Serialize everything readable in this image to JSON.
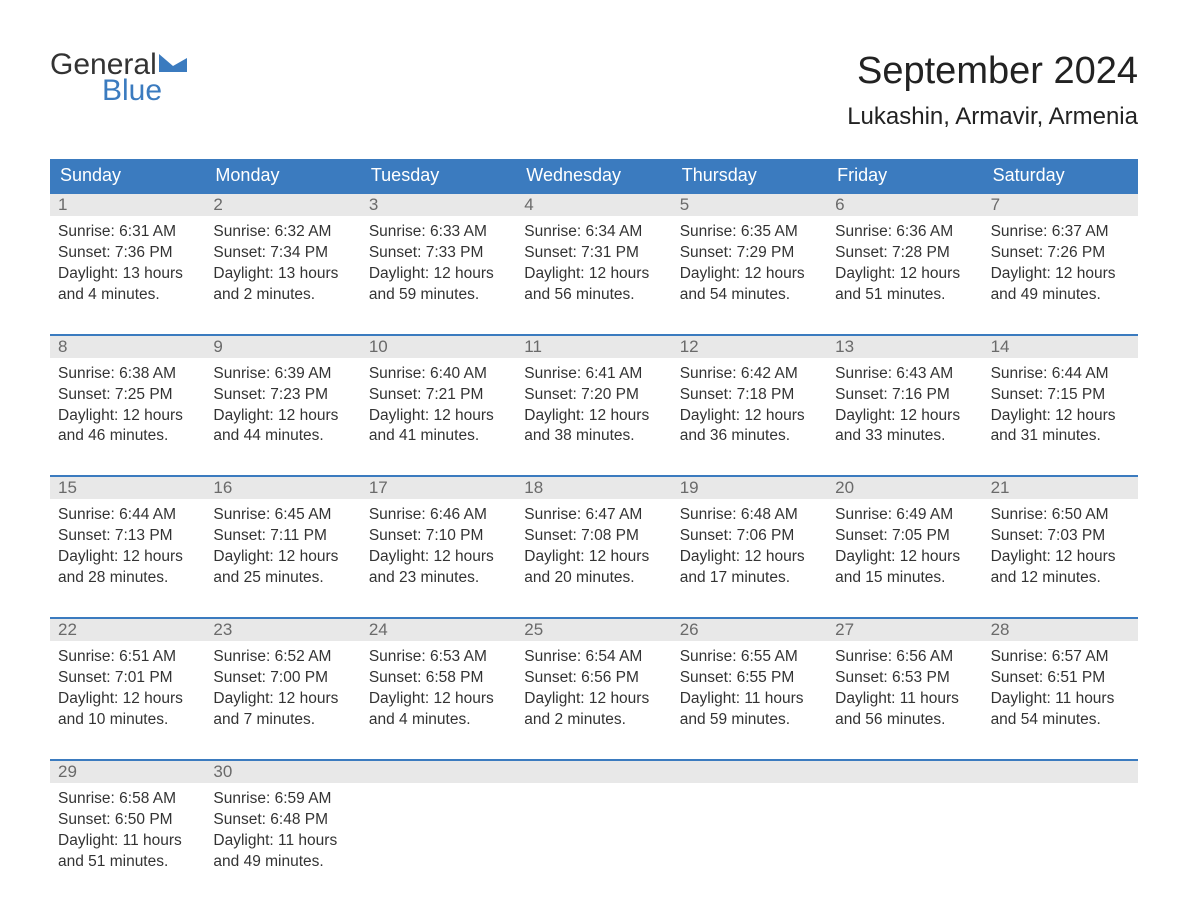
{
  "logo": {
    "top": "General",
    "bottom": "Blue",
    "flag_color": "#3b7bbf"
  },
  "title": "September 2024",
  "location": "Lukashin, Armavir, Armenia",
  "colors": {
    "header_bg": "#3b7bbf",
    "header_text": "#ffffff",
    "daynum_bg": "#e8e8e8",
    "daynum_text": "#6a6a6a",
    "body_text": "#333333",
    "divider": "#3b7bbf"
  },
  "day_headers": [
    "Sunday",
    "Monday",
    "Tuesday",
    "Wednesday",
    "Thursday",
    "Friday",
    "Saturday"
  ],
  "weeks": [
    [
      {
        "n": "1",
        "sunrise": "Sunrise: 6:31 AM",
        "sunset": "Sunset: 7:36 PM",
        "dl1": "Daylight: 13 hours",
        "dl2": "and 4 minutes."
      },
      {
        "n": "2",
        "sunrise": "Sunrise: 6:32 AM",
        "sunset": "Sunset: 7:34 PM",
        "dl1": "Daylight: 13 hours",
        "dl2": "and 2 minutes."
      },
      {
        "n": "3",
        "sunrise": "Sunrise: 6:33 AM",
        "sunset": "Sunset: 7:33 PM",
        "dl1": "Daylight: 12 hours",
        "dl2": "and 59 minutes."
      },
      {
        "n": "4",
        "sunrise": "Sunrise: 6:34 AM",
        "sunset": "Sunset: 7:31 PM",
        "dl1": "Daylight: 12 hours",
        "dl2": "and 56 minutes."
      },
      {
        "n": "5",
        "sunrise": "Sunrise: 6:35 AM",
        "sunset": "Sunset: 7:29 PM",
        "dl1": "Daylight: 12 hours",
        "dl2": "and 54 minutes."
      },
      {
        "n": "6",
        "sunrise": "Sunrise: 6:36 AM",
        "sunset": "Sunset: 7:28 PM",
        "dl1": "Daylight: 12 hours",
        "dl2": "and 51 minutes."
      },
      {
        "n": "7",
        "sunrise": "Sunrise: 6:37 AM",
        "sunset": "Sunset: 7:26 PM",
        "dl1": "Daylight: 12 hours",
        "dl2": "and 49 minutes."
      }
    ],
    [
      {
        "n": "8",
        "sunrise": "Sunrise: 6:38 AM",
        "sunset": "Sunset: 7:25 PM",
        "dl1": "Daylight: 12 hours",
        "dl2": "and 46 minutes."
      },
      {
        "n": "9",
        "sunrise": "Sunrise: 6:39 AM",
        "sunset": "Sunset: 7:23 PM",
        "dl1": "Daylight: 12 hours",
        "dl2": "and 44 minutes."
      },
      {
        "n": "10",
        "sunrise": "Sunrise: 6:40 AM",
        "sunset": "Sunset: 7:21 PM",
        "dl1": "Daylight: 12 hours",
        "dl2": "and 41 minutes."
      },
      {
        "n": "11",
        "sunrise": "Sunrise: 6:41 AM",
        "sunset": "Sunset: 7:20 PM",
        "dl1": "Daylight: 12 hours",
        "dl2": "and 38 minutes."
      },
      {
        "n": "12",
        "sunrise": "Sunrise: 6:42 AM",
        "sunset": "Sunset: 7:18 PM",
        "dl1": "Daylight: 12 hours",
        "dl2": "and 36 minutes."
      },
      {
        "n": "13",
        "sunrise": "Sunrise: 6:43 AM",
        "sunset": "Sunset: 7:16 PM",
        "dl1": "Daylight: 12 hours",
        "dl2": "and 33 minutes."
      },
      {
        "n": "14",
        "sunrise": "Sunrise: 6:44 AM",
        "sunset": "Sunset: 7:15 PM",
        "dl1": "Daylight: 12 hours",
        "dl2": "and 31 minutes."
      }
    ],
    [
      {
        "n": "15",
        "sunrise": "Sunrise: 6:44 AM",
        "sunset": "Sunset: 7:13 PM",
        "dl1": "Daylight: 12 hours",
        "dl2": "and 28 minutes."
      },
      {
        "n": "16",
        "sunrise": "Sunrise: 6:45 AM",
        "sunset": "Sunset: 7:11 PM",
        "dl1": "Daylight: 12 hours",
        "dl2": "and 25 minutes."
      },
      {
        "n": "17",
        "sunrise": "Sunrise: 6:46 AM",
        "sunset": "Sunset: 7:10 PM",
        "dl1": "Daylight: 12 hours",
        "dl2": "and 23 minutes."
      },
      {
        "n": "18",
        "sunrise": "Sunrise: 6:47 AM",
        "sunset": "Sunset: 7:08 PM",
        "dl1": "Daylight: 12 hours",
        "dl2": "and 20 minutes."
      },
      {
        "n": "19",
        "sunrise": "Sunrise: 6:48 AM",
        "sunset": "Sunset: 7:06 PM",
        "dl1": "Daylight: 12 hours",
        "dl2": "and 17 minutes."
      },
      {
        "n": "20",
        "sunrise": "Sunrise: 6:49 AM",
        "sunset": "Sunset: 7:05 PM",
        "dl1": "Daylight: 12 hours",
        "dl2": "and 15 minutes."
      },
      {
        "n": "21",
        "sunrise": "Sunrise: 6:50 AM",
        "sunset": "Sunset: 7:03 PM",
        "dl1": "Daylight: 12 hours",
        "dl2": "and 12 minutes."
      }
    ],
    [
      {
        "n": "22",
        "sunrise": "Sunrise: 6:51 AM",
        "sunset": "Sunset: 7:01 PM",
        "dl1": "Daylight: 12 hours",
        "dl2": "and 10 minutes."
      },
      {
        "n": "23",
        "sunrise": "Sunrise: 6:52 AM",
        "sunset": "Sunset: 7:00 PM",
        "dl1": "Daylight: 12 hours",
        "dl2": "and 7 minutes."
      },
      {
        "n": "24",
        "sunrise": "Sunrise: 6:53 AM",
        "sunset": "Sunset: 6:58 PM",
        "dl1": "Daylight: 12 hours",
        "dl2": "and 4 minutes."
      },
      {
        "n": "25",
        "sunrise": "Sunrise: 6:54 AM",
        "sunset": "Sunset: 6:56 PM",
        "dl1": "Daylight: 12 hours",
        "dl2": "and 2 minutes."
      },
      {
        "n": "26",
        "sunrise": "Sunrise: 6:55 AM",
        "sunset": "Sunset: 6:55 PM",
        "dl1": "Daylight: 11 hours",
        "dl2": "and 59 minutes."
      },
      {
        "n": "27",
        "sunrise": "Sunrise: 6:56 AM",
        "sunset": "Sunset: 6:53 PM",
        "dl1": "Daylight: 11 hours",
        "dl2": "and 56 minutes."
      },
      {
        "n": "28",
        "sunrise": "Sunrise: 6:57 AM",
        "sunset": "Sunset: 6:51 PM",
        "dl1": "Daylight: 11 hours",
        "dl2": "and 54 minutes."
      }
    ],
    [
      {
        "n": "29",
        "sunrise": "Sunrise: 6:58 AM",
        "sunset": "Sunset: 6:50 PM",
        "dl1": "Daylight: 11 hours",
        "dl2": "and 51 minutes."
      },
      {
        "n": "30",
        "sunrise": "Sunrise: 6:59 AM",
        "sunset": "Sunset: 6:48 PM",
        "dl1": "Daylight: 11 hours",
        "dl2": "and 49 minutes."
      },
      {
        "n": "",
        "sunrise": "",
        "sunset": "",
        "dl1": "",
        "dl2": ""
      },
      {
        "n": "",
        "sunrise": "",
        "sunset": "",
        "dl1": "",
        "dl2": ""
      },
      {
        "n": "",
        "sunrise": "",
        "sunset": "",
        "dl1": "",
        "dl2": ""
      },
      {
        "n": "",
        "sunrise": "",
        "sunset": "",
        "dl1": "",
        "dl2": ""
      },
      {
        "n": "",
        "sunrise": "",
        "sunset": "",
        "dl1": "",
        "dl2": ""
      }
    ]
  ]
}
